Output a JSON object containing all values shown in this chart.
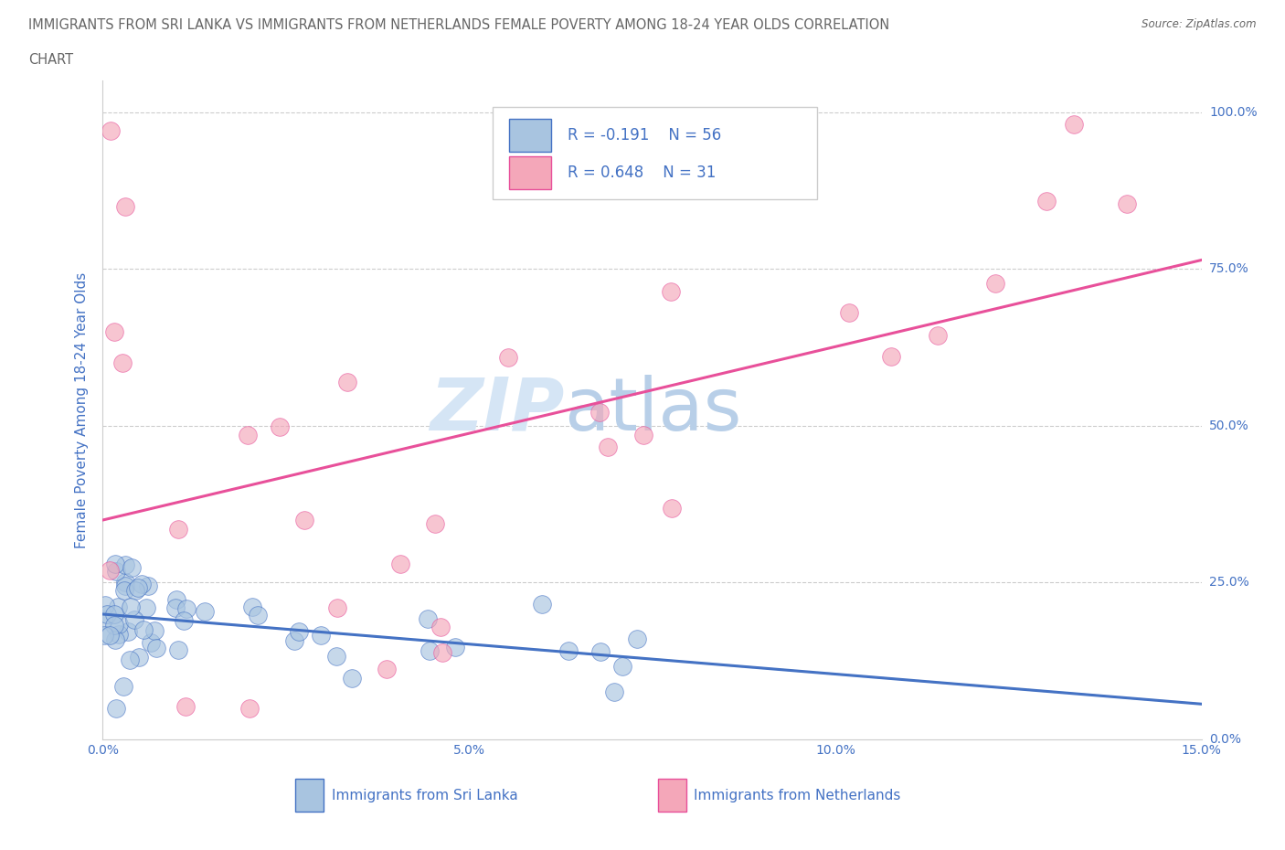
{
  "title_line1": "IMMIGRANTS FROM SRI LANKA VS IMMIGRANTS FROM NETHERLANDS FEMALE POVERTY AMONG 18-24 YEAR OLDS CORRELATION",
  "title_line2": "CHART",
  "source_text": "Source: ZipAtlas.com",
  "ylabel": "Female Poverty Among 18-24 Year Olds",
  "legend_label1": "Immigrants from Sri Lanka",
  "legend_label2": "Immigrants from Netherlands",
  "r1": -0.191,
  "n1": 56,
  "r2": 0.648,
  "n2": 31,
  "watermark_line1": "ZIP",
  "watermark_line2": "atlas",
  "color_blue": "#a8c4e0",
  "color_pink": "#f4a7b9",
  "line_color_blue": "#4472c4",
  "line_color_pink": "#e8509a",
  "line_color_dashed": "#aaaaaa",
  "grid_color": "#cccccc",
  "title_color": "#666666",
  "axis_label_color": "#4472c4",
  "tick_color": "#4472c4",
  "watermark_color": "#d5e5f5",
  "background_color": "#ffffff"
}
